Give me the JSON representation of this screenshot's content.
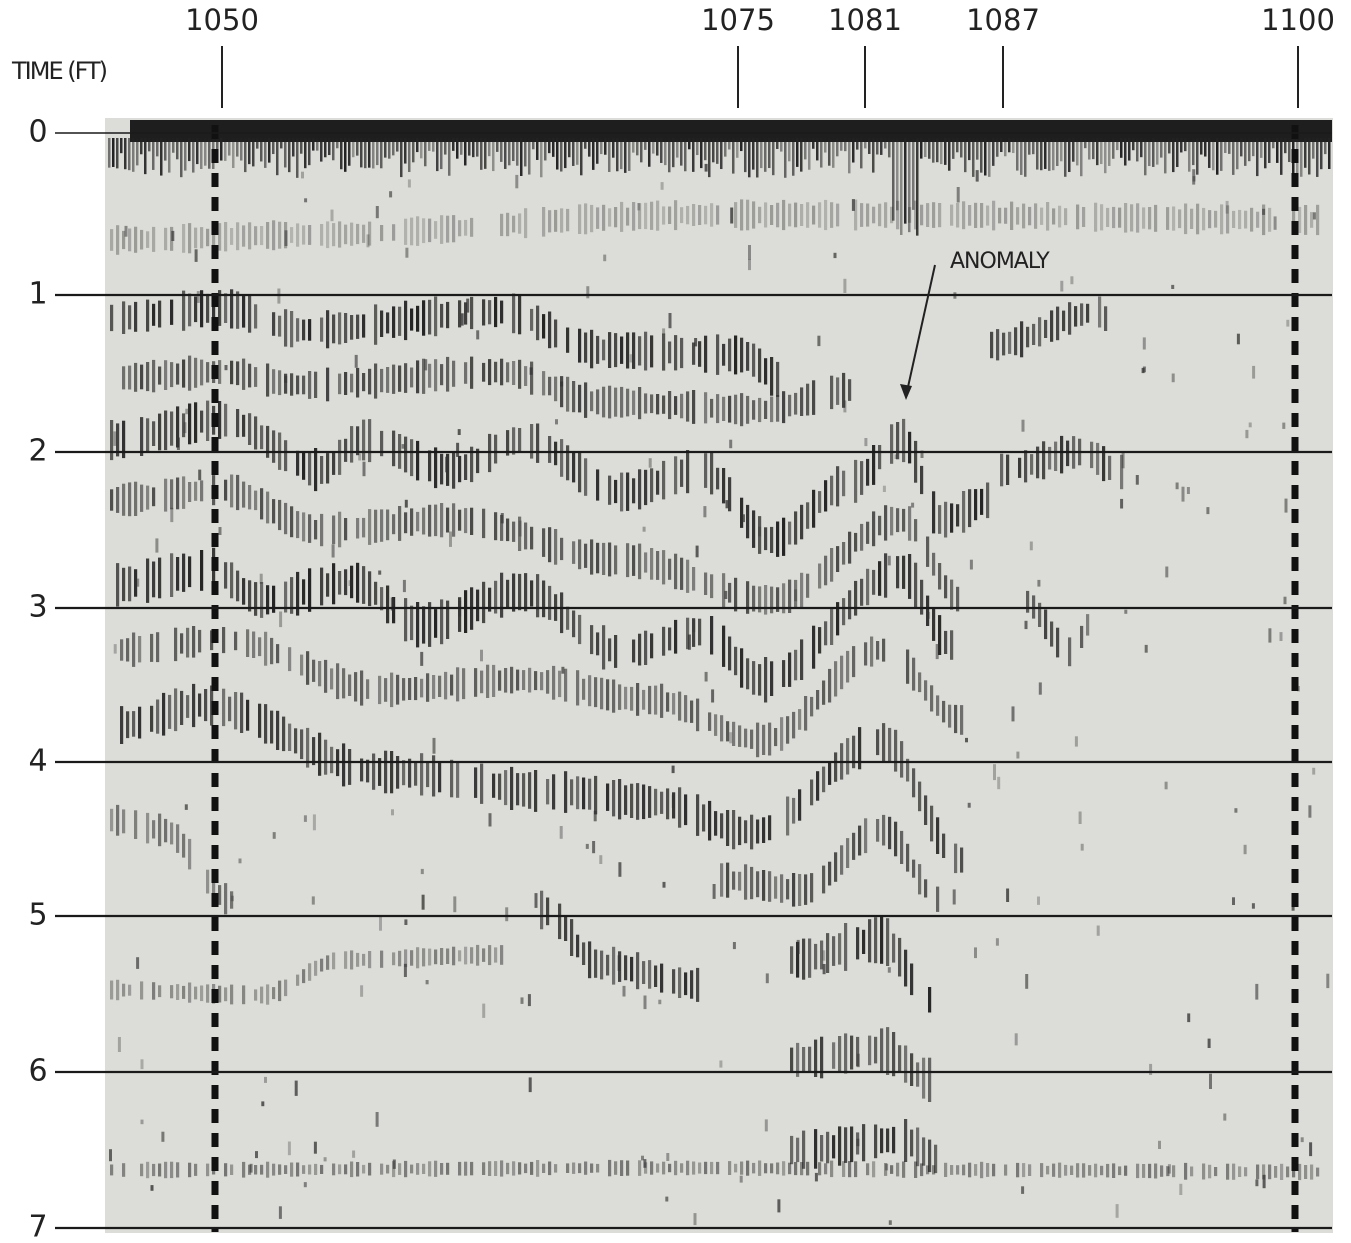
{
  "y_axis": {
    "label": "TIME (FT)",
    "ticks": [
      "0",
      "1",
      "2",
      "3",
      "4",
      "5",
      "6",
      "7"
    ]
  },
  "stations": [
    "1050",
    "1075",
    "1081",
    "1087",
    "1100"
  ],
  "annotation": "ANOMALY"
}
